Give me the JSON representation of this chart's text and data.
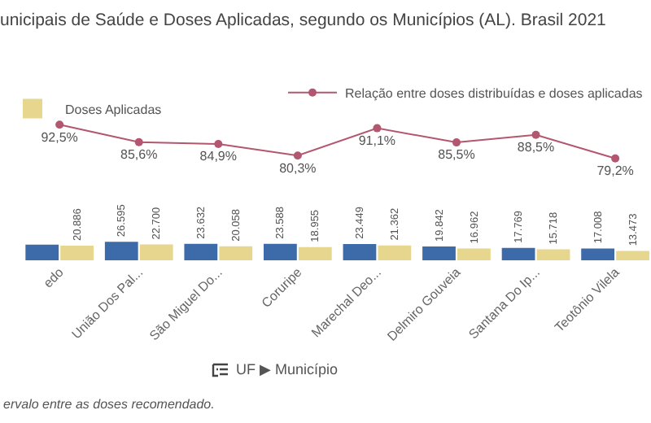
{
  "chart_data": [
    {
      "type": "line",
      "title": "unicipais de Saúde e Doses Aplicadas, segundo os Municípios (AL). Brasil 2021",
      "categories": [
        null,
        null,
        null,
        null,
        null,
        null,
        null,
        null
      ],
      "series": [
        {
          "name": "Relação entre doses distribuídas e doses aplicadas",
          "color": "#b3566f",
          "values": [
            92.5,
            85.6,
            84.9,
            80.3,
            91.1,
            85.5,
            88.5,
            79.2
          ],
          "value_labels": [
            "92,5%",
            "85,6%",
            "84,9%",
            "80,3%",
            "91,1%",
            "85,5%",
            "88,5%",
            "79,2%"
          ]
        }
      ],
      "marker": "circle",
      "legend": "top right",
      "tick_labels": false
    },
    {
      "type": "bar",
      "categories": [
        "edo",
        "União Dos Pal...",
        "São Miguel Do...",
        "Coruripe",
        "Marechal Deo...",
        "Delmiro Gouveia",
        "Santana Do Ip...",
        "Teotônio Vilela"
      ],
      "series": [
        {
          "color": "#3d6aa8",
          "values": [
            22580,
            26595,
            23632,
            23588,
            23449,
            19842,
            17769,
            17008
          ],
          "value_labels": [
            null,
            "26.595",
            "23.632",
            "23.588",
            "23.449",
            "19.842",
            "17.769",
            "17.008"
          ]
        },
        {
          "name": "Doses Aplicadas",
          "color": "#e6d68e",
          "values": [
            20886,
            22700,
            20058,
            18955,
            21362,
            16962,
            15718,
            13473
          ],
          "value_labels": [
            "20.886",
            "22.700",
            "20.058",
            "18.955",
            "21.362",
            "16.962",
            "15.718",
            "13.473"
          ]
        }
      ],
      "legend": "top left",
      "tick_labels": "x",
      "annotations": [
        "UF ▶ Município",
        "ervalo entre as doses recomendado."
      ]
    }
  ]
}
